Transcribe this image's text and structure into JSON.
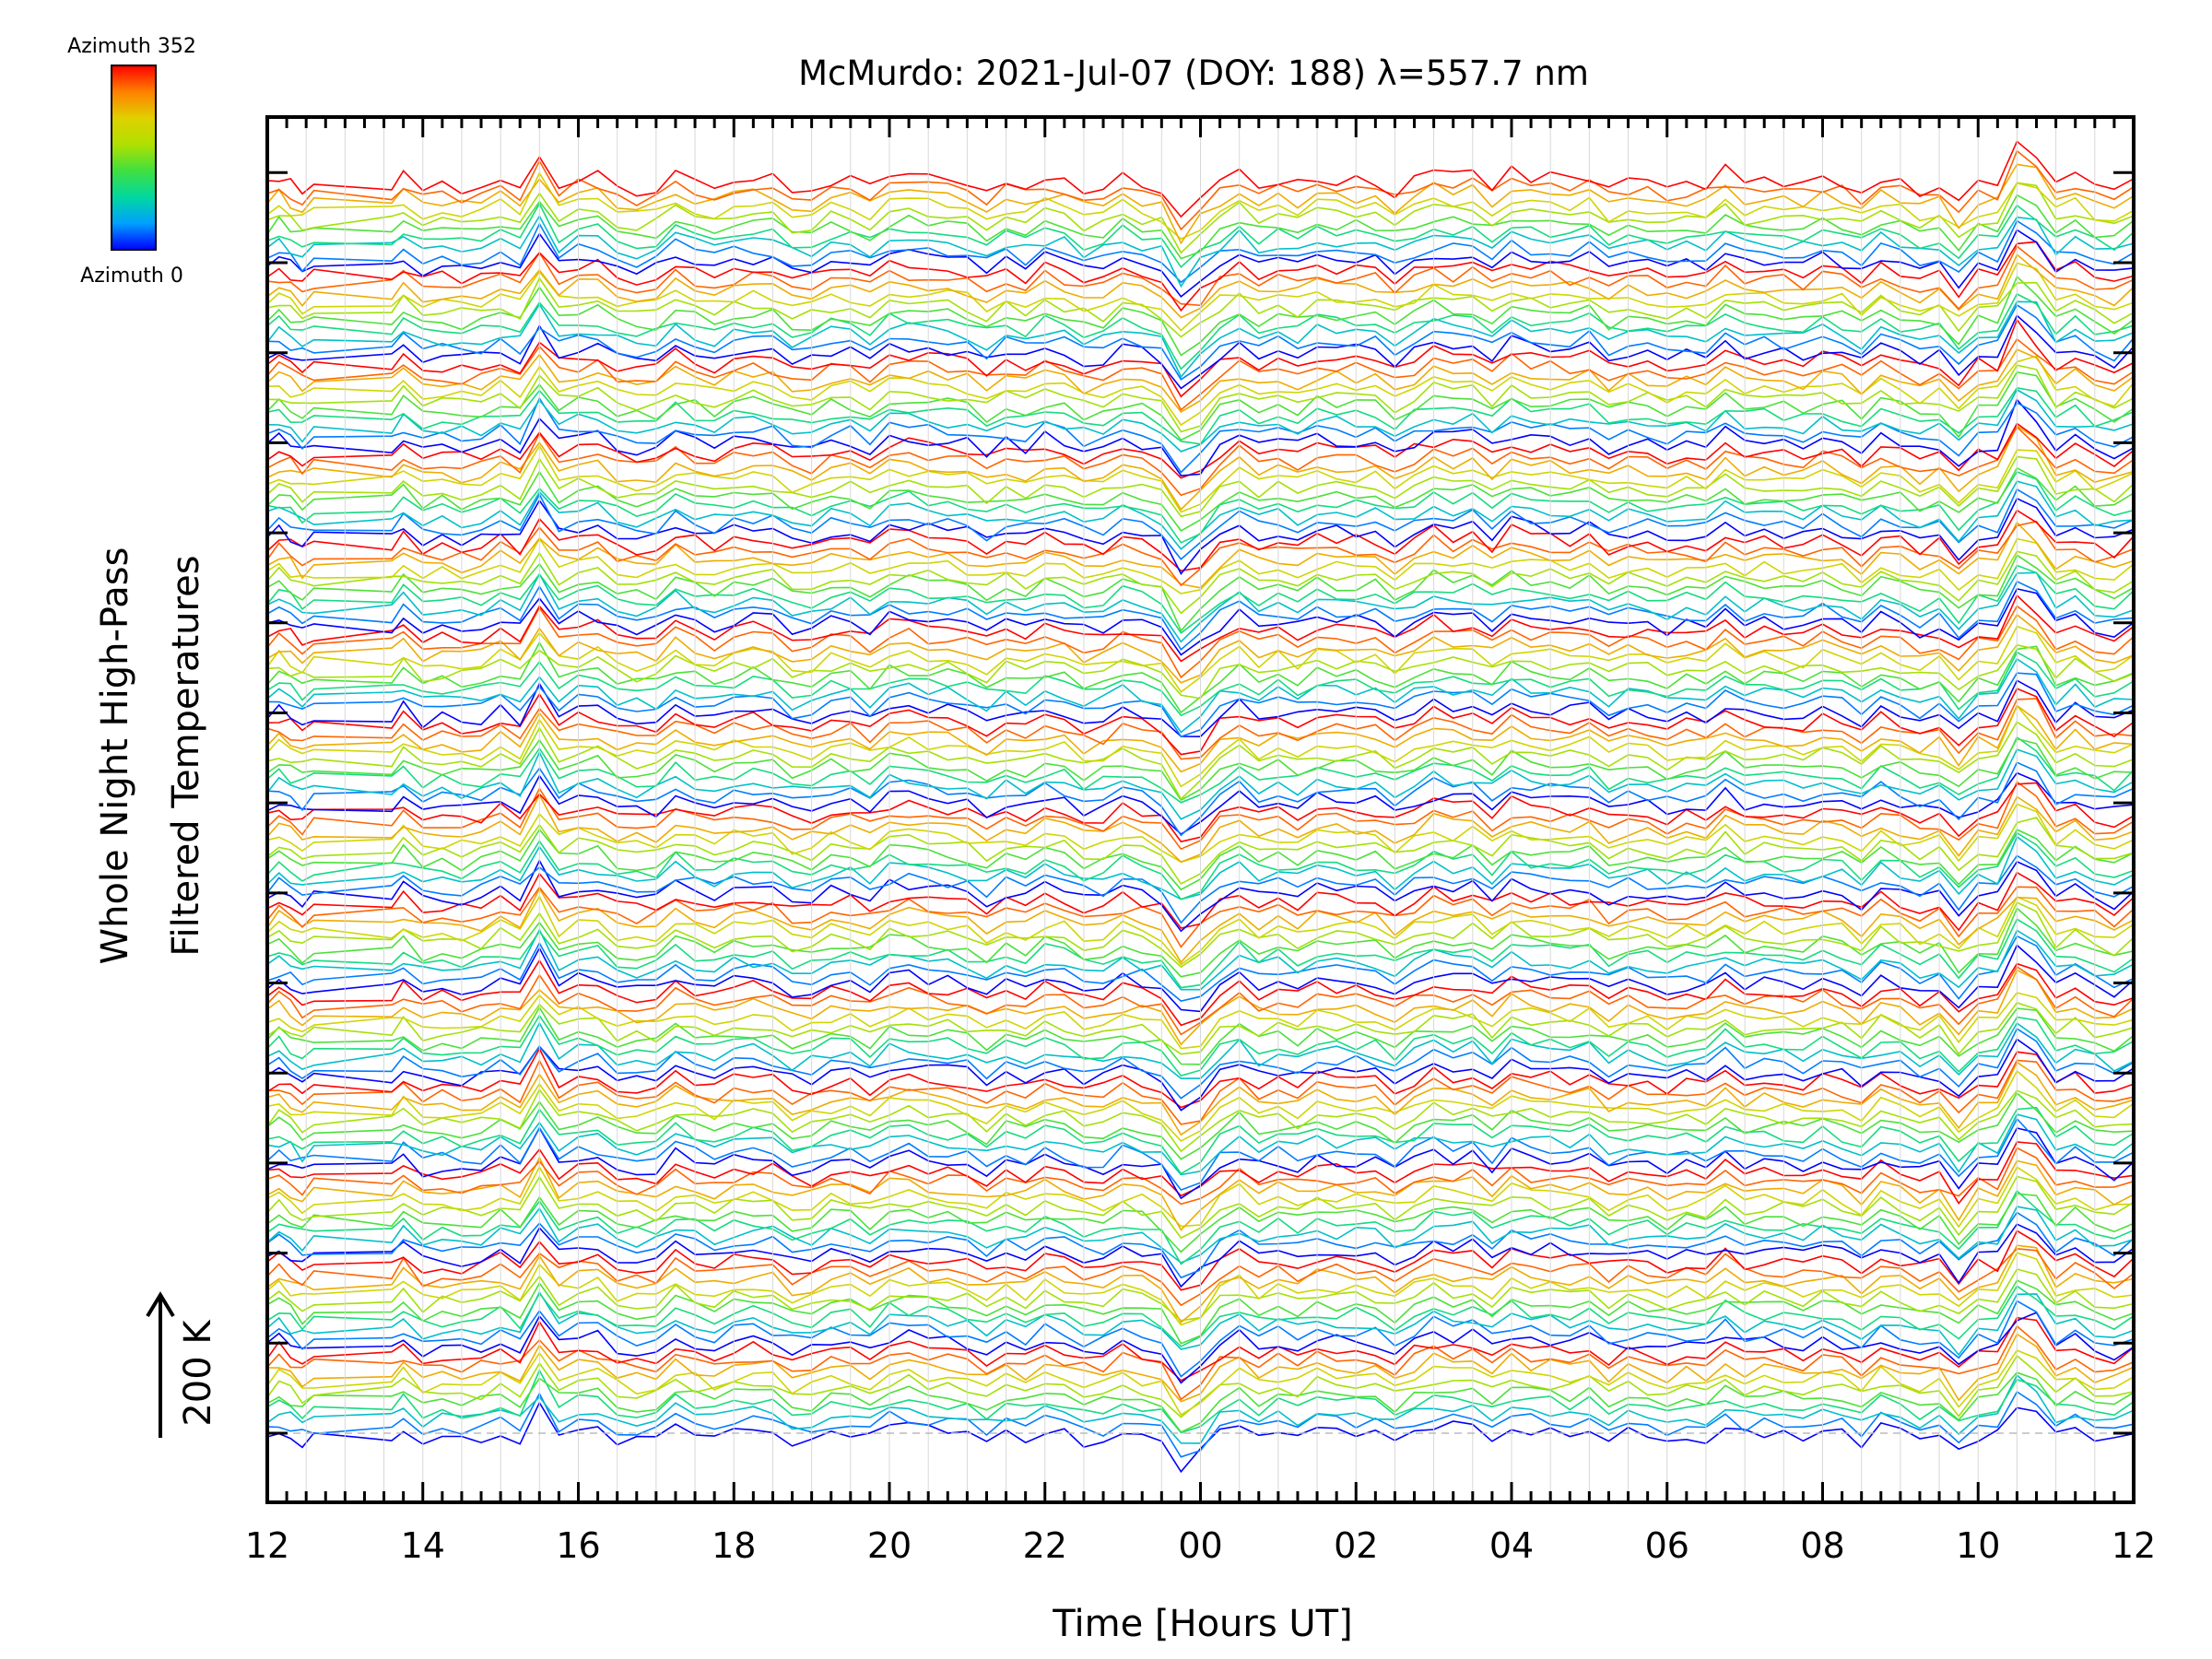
{
  "chart_data": {
    "type": "line",
    "title": "McMurdo: 2021-Jul-07 (DOY: 188) λ=557.7 nm",
    "xlabel": "Time [Hours UT]",
    "ylabel_line1": "Whole Night High-Pass",
    "ylabel_line2": "Filtered Temperatures",
    "x_tick_labels": [
      "12",
      "14",
      "16",
      "18",
      "20",
      "22",
      "00",
      "02",
      "04",
      "06",
      "08",
      "10",
      "12"
    ],
    "x_range_hours": [
      12,
      36
    ],
    "colorbar": {
      "top_label": "Azimuth 352",
      "bottom_label": "Azimuth 0",
      "colors": [
        "#0000ff",
        "#00a0ff",
        "#00d8a0",
        "#40e040",
        "#b0e000",
        "#e0d000",
        "#ff8000",
        "#ff0000"
      ]
    },
    "scale_label": "200 K",
    "azimuth_range": [
      0,
      352
    ],
    "trace_groups": 14,
    "traces_per_group": 10,
    "grid": "vertical-light",
    "series_note": "Stacked azimuth traces, each offset vertically; high-pass filtered temperature anomalies in K"
  }
}
